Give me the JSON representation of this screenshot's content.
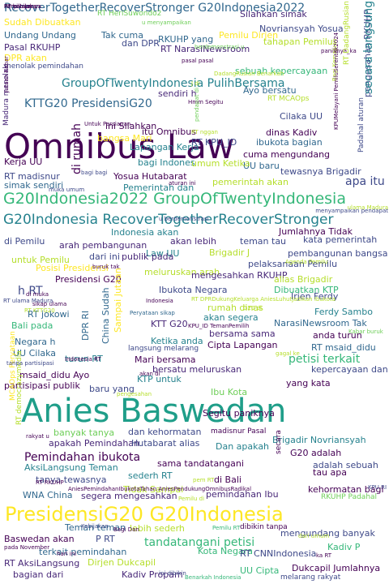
{
  "colors": {
    "background": "#ffffff",
    "palette": [
      "#440154",
      "#482878",
      "#3e4989",
      "#31688e",
      "#26828e",
      "#1f9e89",
      "#35b779",
      "#6ece58",
      "#b5de2b",
      "#fde725"
    ]
  },
  "words": [
    {
      "text": "Omnibus Law",
      "color": "#440154"
    },
    {
      "text": "Anies Baswedan",
      "color": "#1f9e89"
    },
    {
      "text": "PresidensiG20 G20Indonesia",
      "color": "#fde725"
    },
    {
      "text": "G20Indonesia2022 GroupOfTwentyIndonesia",
      "color": "#35b779"
    },
    {
      "text": "G20Indonesia RecoverTogetherRecoverStronger",
      "color": "#26828e"
    },
    {
      "text": "RecoverTogetherRecoverStronger G20Indonesia2022",
      "color": "#31688e"
    },
    {
      "text": "GroupOfTwentyIndonesia PulihBersama",
      "color": "#26828e"
    },
    {
      "text": "KTTG20 PresidensiG20",
      "color": "#31688e"
    },
    {
      "text": "Silahkan simak",
      "color": "#482878"
    },
    {
      "text": "Sudah Dibuatkan",
      "color": "#fde725"
    },
    {
      "text": "RT HeriSuwondo2",
      "color": "#6ece58"
    },
    {
      "text": "u menyampaikan",
      "color": "#6ece58"
    },
    {
      "text": "RT NarasiNewsroom",
      "color": "#482878"
    },
    {
      "text": "Novriansyah Yosua",
      "color": "#3e4989"
    },
    {
      "text": "Undang Undang",
      "color": "#31688e"
    },
    {
      "text": "Tak cuma",
      "color": "#31688e"
    },
    {
      "text": "RKUHP yang",
      "color": "#31688e"
    },
    {
      "text": "Pemilu Dirjen",
      "color": "#fde725"
    },
    {
      "text": "tahapan Pemilu",
      "color": "#b5de2b"
    },
    {
      "text": "Pasal RKUHP",
      "color": "#482878"
    },
    {
      "text": "dan DPR",
      "color": "#3e4989"
    },
    {
      "text": "berdemonstrasi u",
      "color": "#6ece58"
    },
    {
      "text": "DPR akan",
      "color": "#fde725"
    },
    {
      "text": "sebuah kepercayaan",
      "color": "#35b779"
    },
    {
      "text": "menolak pemindahan",
      "color": "#3e4989"
    },
    {
      "text": "Ayo bersatu",
      "color": "#31688e"
    },
    {
      "text": "RT MCAOps",
      "color": "#b5de2b"
    },
    {
      "text": "sendiri h",
      "color": "#482878"
    },
    {
      "text": "Cilaka UU",
      "color": "#3e4989"
    },
    {
      "text": "itu Omnibus",
      "color": "#440154"
    },
    {
      "text": "ini Silahkan",
      "color": "#440154"
    },
    {
      "text": "di rumah",
      "color": "#440154"
    },
    {
      "text": "dinas Kadiv",
      "color": "#440154"
    },
    {
      "text": "bangsa Mari",
      "color": "#fde725"
    },
    {
      "text": "Lapangan Kerja",
      "color": "#26828e"
    },
    {
      "text": "RT KPU_ID",
      "color": "#3e4989"
    },
    {
      "text": "ibukota bagian",
      "color": "#31688e"
    },
    {
      "text": "pengesahan RKUHP",
      "color": "#3e4989"
    },
    {
      "text": "Kerja UU",
      "color": "#440154"
    },
    {
      "text": "bagi Indones",
      "color": "#26828e"
    },
    {
      "text": "cuma mengundang",
      "color": "#440154"
    },
    {
      "text": "UU baru",
      "color": "#31688e"
    },
    {
      "text": "RT madisnur",
      "color": "#3e4989"
    },
    {
      "text": "Yosua Hutabarat",
      "color": "#440154"
    },
    {
      "text": "tewasnya Brigadir",
      "color": "#3e4989"
    },
    {
      "text": "simak sendiri",
      "color": "#31688e"
    },
    {
      "text": "Pemerintah dan",
      "color": "#26828e"
    },
    {
      "text": "pemerintah akan",
      "color": "#b5de2b"
    },
    {
      "text": "apa itu",
      "color": "#3e4989"
    },
    {
      "text": "Jumlahnya Tidak",
      "color": "#440154"
    },
    {
      "text": "Indonesia akan",
      "color": "#26828e"
    },
    {
      "text": "di Pemilu",
      "color": "#3e4989"
    },
    {
      "text": "arah pembangunan",
      "color": "#482878"
    },
    {
      "text": "akan lebih",
      "color": "#482878"
    },
    {
      "text": "teman tau",
      "color": "#3e4989"
    },
    {
      "text": "kata pemerintah",
      "color": "#3e4989"
    },
    {
      "text": "Law UU",
      "color": "#26828e"
    },
    {
      "text": "Brigadir J",
      "color": "#b5de2b"
    },
    {
      "text": "pembangunan bangsa",
      "color": "#3e4989"
    },
    {
      "text": "untuk Pemilu",
      "color": "#b5de2b"
    },
    {
      "text": "dari ini",
      "color": "#3e4989"
    },
    {
      "text": "publik pada",
      "color": "#482878"
    },
    {
      "text": "pelaksanaan Pemilu",
      "color": "#3e4989"
    },
    {
      "text": "Posisi Presidensi",
      "color": "#fde725"
    },
    {
      "text": "meluruskan arah",
      "color": "#b5de2b"
    },
    {
      "text": "Presidensi G20",
      "color": "#440154"
    },
    {
      "text": "mengesahkan RKUHP",
      "color": "#482878"
    },
    {
      "text": "alias Brigadir",
      "color": "#b5de2b"
    },
    {
      "text": "h RT",
      "color": "#3e4989"
    },
    {
      "text": "Ibukota Negara",
      "color": "#3e4989"
    },
    {
      "text": "Dibuatkan KTP",
      "color": "#35b779"
    },
    {
      "text": "Irjen Ferdy",
      "color": "#3e4989"
    },
    {
      "text": "RT jokowi",
      "color": "#31688e"
    },
    {
      "text": "DPR RI",
      "color": "#31688e"
    },
    {
      "text": "China Sudah",
      "color": "#31688e"
    },
    {
      "text": "Sampai Jutaan",
      "color": "#fde725"
    },
    {
      "text": "Bali pada",
      "color": "#35b779"
    },
    {
      "text": "rumah dinas",
      "color": "#b5de2b"
    },
    {
      "text": "akan segera",
      "color": "#26828e"
    },
    {
      "text": "Ferdy Sambo",
      "color": "#26828e"
    },
    {
      "text": "KTT G20",
      "color": "#482878"
    },
    {
      "text": "NarasiNewsroom Tak",
      "color": "#31688e"
    },
    {
      "text": "Negara h",
      "color": "#31688e"
    },
    {
      "text": "bersama sama",
      "color": "#482878"
    },
    {
      "text": "Cipta Lapangan",
      "color": "#440154"
    },
    {
      "text": "anda turun",
      "color": "#440154"
    },
    {
      "text": "Ketika anda",
      "color": "#26828e"
    },
    {
      "text": "langsung melarang",
      "color": "#3e4989"
    },
    {
      "text": "RT msaid_didu",
      "color": "#31688e"
    },
    {
      "text": "UU Cilaka",
      "color": "#31688e"
    },
    {
      "text": "turun RT",
      "color": "#26828e"
    },
    {
      "text": "Mari bersama",
      "color": "#440154"
    },
    {
      "text": "petisi terkait",
      "color": "#35b779"
    },
    {
      "text": "bersatu meluruskan",
      "color": "#482878"
    },
    {
      "text": "kepercayaan dan",
      "color": "#3e4989"
    },
    {
      "text": "msaid_didu Ayo",
      "color": "#440154"
    },
    {
      "text": "KTP untuk",
      "color": "#26828e"
    },
    {
      "text": "partisipasi publik",
      "color": "#440154"
    },
    {
      "text": "yang kata",
      "color": "#440154"
    },
    {
      "text": "baru yang",
      "color": "#3e4989"
    },
    {
      "text": "Ibu Kota",
      "color": "#6ece58"
    },
    {
      "text": "banyak tanya",
      "color": "#6ece58"
    },
    {
      "text": "dan kehormatan",
      "color": "#3e4989"
    },
    {
      "text": "madisnur Pasal",
      "color": "#440154"
    },
    {
      "text": "apakah Pemindahan",
      "color": "#482878"
    },
    {
      "text": "Hutabarat alias",
      "color": "#3e4989"
    },
    {
      "text": "Dan apakah",
      "color": "#26828e"
    },
    {
      "text": "Brigadir Novriansyah",
      "color": "#26828e"
    },
    {
      "text": "Pemindahan ibukota",
      "color": "#440154"
    },
    {
      "text": "sama tandatangani",
      "color": "#440154"
    },
    {
      "text": "G20 adalah",
      "color": "#440154"
    },
    {
      "text": "AksiLangsung Teman",
      "color": "#26828e"
    },
    {
      "text": "sederh RT",
      "color": "#26828e"
    },
    {
      "text": "tanya tewasnya",
      "color": "#3e4989"
    },
    {
      "text": "adalah sebuah",
      "color": "#3e4989"
    },
    {
      "text": "tau apa",
      "color": "#440154"
    },
    {
      "text": "Tidak Sampai",
      "color": "#b5de2b"
    },
    {
      "text": "di Bali",
      "color": "#440154"
    },
    {
      "text": "WNA China",
      "color": "#31688e"
    },
    {
      "text": "segera mengesahkan",
      "color": "#482878"
    },
    {
      "text": "pemindahan Ibu",
      "color": "#482878"
    },
    {
      "text": "kehormatan bagi",
      "color": "#440154"
    },
    {
      "text": "RKUHP Padahal",
      "color": "#6ece58"
    },
    {
      "text": "Teman teman",
      "color": "#31688e"
    },
    {
      "text": "lebih sederh",
      "color": "#b5de2b"
    },
    {
      "text": "dibikin tanpa",
      "color": "#440154"
    },
    {
      "text": "mengundang banyak",
      "color": "#3e4989"
    },
    {
      "text": "Baswedan akan",
      "color": "#440154"
    },
    {
      "text": "P RT",
      "color": "#3e4989"
    },
    {
      "text": "tandatangani petisi",
      "color": "#35b779"
    },
    {
      "text": "terkait pemindahan",
      "color": "#31688e"
    },
    {
      "text": "Kota Negara",
      "color": "#35b779"
    },
    {
      "text": "RT CNNIndonesia",
      "color": "#3e4989"
    },
    {
      "text": "Kadiv P",
      "color": "#35b779"
    },
    {
      "text": "RT AksiLangsung",
      "color": "#482878"
    },
    {
      "text": "Dirjen Dukcapil",
      "color": "#b5de2b"
    },
    {
      "text": "UU Cipta",
      "color": "#35b779"
    },
    {
      "text": "Dukcapil Jumlahnya",
      "color": "#440154"
    },
    {
      "text": "bagian dari",
      "color": "#482878"
    },
    {
      "text": "Kadiv Propam",
      "color": "#482878"
    },
    {
      "text": "Benarkah Indonesia",
      "color": "#35b779"
    },
    {
      "text": "melarang rakyat",
      "color": "#3e4989"
    },
    {
      "text": "paniknya_ka",
      "color": "#440154"
    },
    {
      "text": "RT DadangRusian",
      "color": "#b5de2b"
    },
    {
      "text": "secara langsung",
      "color": "#26828e"
    },
    {
      "text": "Madura menolak",
      "color": "#482878"
    },
    {
      "text": "Padahal aturan",
      "color": "#3e4989"
    },
    {
      "text": "aturan ini",
      "color": "#440154"
    },
    {
      "text": "muka umum",
      "color": "#3e4989"
    },
    {
      "text": "u berdemonstrasi",
      "color": "#3e4989"
    },
    {
      "text": "menyampaikan pendapat",
      "color": "#3e4989"
    },
    {
      "text": "ulama Madura",
      "color": "#b5de2b"
    },
    {
      "text": "RT ulama Madura",
      "color": "#3e4989"
    },
    {
      "text": "Peryataan sikap",
      "color": "#31688e"
    },
    {
      "text": "KPU_ID TemanPemilih",
      "color": "#440154"
    },
    {
      "text": "pengesahan",
      "color": "#b5de2b"
    },
    {
      "text": "Segitu paniknya",
      "color": "#440154"
    },
    {
      "text": "rakyat u",
      "color": "#440154"
    },
    {
      "text": "MCAOps Peryataan",
      "color": "#fde725"
    },
    {
      "text": "RT democrazymedia",
      "color": "#b5de2b"
    },
    {
      "text": "tanpa partisipasi",
      "color": "#3e4989"
    },
    {
      "text": "KPU RI",
      "color": "#3e4989"
    },
    {
      "text": "bagi bagi",
      "color": "#3e4989"
    },
    {
      "text": "Kebijakan",
      "color": "#3e4989"
    },
    {
      "text": "ini dibikin",
      "color": "#3e4989"
    },
    {
      "text": "di muka",
      "color": "#440154"
    },
    {
      "text": "sikap ulama",
      "color": "#440154"
    },
    {
      "text": "Untuk Persiapan",
      "color": "#440154"
    },
    {
      "text": "J di",
      "color": "#b5de2b"
    },
    {
      "text": "Hmm Segitu",
      "color": "#440154"
    },
    {
      "text": "Bagi Kemajuan",
      "color": "#b5de2b"
    },
    {
      "text": "KPUMelayani PemiluSerentak2024",
      "color": "#440154"
    },
    {
      "text": "pendapat di",
      "color": "#6ece58"
    },
    {
      "text": "DadangRusian Benarkah",
      "color": "#b5de2b"
    },
    {
      "text": "Jutaan Kabar",
      "color": "#440154"
    },
    {
      "text": "G20 di",
      "color": "#b5de2b"
    },
    {
      "text": "umum Ketika",
      "color": "#b5de2b"
    },
    {
      "text": "secara",
      "color": "#440154"
    },
    {
      "text": "Pemilu RT",
      "color": "#35b779"
    },
    {
      "text": "gagal ke",
      "color": "#b5de2b"
    },
    {
      "text": "Kabar buruk",
      "color": "#6ece58"
    },
    {
      "text": "Agenda Pemilu",
      "color": "#b5de2b"
    },
    {
      "text": "Indonesia RT",
      "color": "#440154"
    },
    {
      "text": "akan di",
      "color": "#440154"
    },
    {
      "text": "Bagi Dan",
      "color": "#440154"
    },
    {
      "text": "pada November",
      "color": "#440154"
    },
    {
      "text": "hari ini",
      "color": "#440154"
    },
    {
      "text": "ka RT",
      "color": "#440154"
    },
    {
      "text": "Indonesia",
      "color": "#440154"
    },
    {
      "text": "buruk tak",
      "color": "#440154"
    },
    {
      "text": "dari umum",
      "color": "#b5de2b"
    },
    {
      "text": "pem RT",
      "color": "#b5de2b"
    },
    {
      "text": "AniesPemindahanIbukotaTahan AniesPendukungOmnibusRadikal",
      "color": "#440154"
    },
    {
      "text": "RT DPRDukungKeluarga AniesLuhutJadikan Ibukota",
      "color": "#b5de2b"
    },
    {
      "text": "RT KTTG20",
      "color": "#b5de2b"
    },
    {
      "text": "Pemilu di",
      "color": "#b5de2b"
    },
    {
      "text": "RT nggan",
      "color": "#b5de2b"
    },
    {
      "text": "pasal pasal",
      "color": "#440154"
    },
    {
      "text": "RT RKUHP",
      "color": "#440154"
    },
    {
      "text": "Peryataan",
      "color": "#440154"
    },
    {
      "text": "RT kebijakan",
      "color": "#440154"
    },
    {
      "text": "Pemilu tanpa",
      "color": "#440154"
    }
  ]
}
